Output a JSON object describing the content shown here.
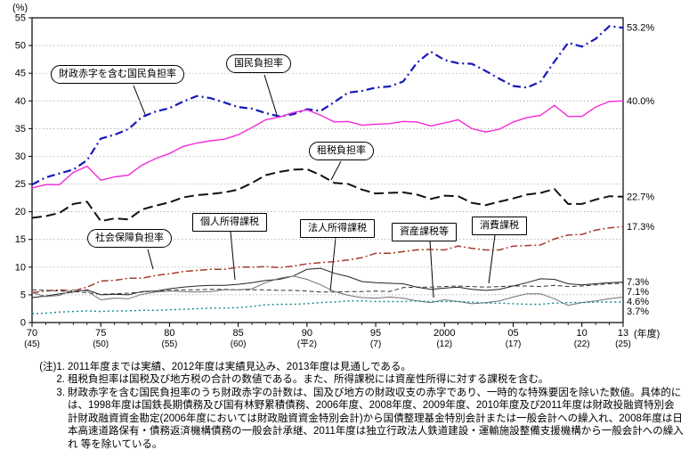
{
  "chart_data": {
    "type": "line",
    "y_axis_unit": "(%)",
    "x_axis_unit": "(年度)",
    "ylim": [
      0,
      55
    ],
    "grid": "horizontal-dotted",
    "y_ticks": [
      0,
      5,
      10,
      15,
      20,
      25,
      30,
      35,
      40,
      45,
      50,
      55
    ],
    "x_range": [
      1970,
      2013
    ],
    "x_ticks": [
      {
        "year": 1970,
        "label": "70",
        "sub": "(45)"
      },
      {
        "year": 1975,
        "label": "75",
        "sub": "(50)"
      },
      {
        "year": 1980,
        "label": "80",
        "sub": "(55)"
      },
      {
        "year": 1985,
        "label": "85",
        "sub": "(60)"
      },
      {
        "year": 1990,
        "label": "90",
        "sub": "(平2)"
      },
      {
        "year": 1995,
        "label": "95",
        "sub": "(7)"
      },
      {
        "year": 2000,
        "label": "2000",
        "sub": "(12)"
      },
      {
        "year": 2005,
        "label": "05",
        "sub": "(17)"
      },
      {
        "year": 2010,
        "label": "10",
        "sub": "(22)"
      },
      {
        "year": 2013,
        "label": "13",
        "sub": "(25)"
      }
    ],
    "years": [
      1970,
      1971,
      1972,
      1973,
      1974,
      1975,
      1976,
      1977,
      1978,
      1979,
      1980,
      1981,
      1982,
      1983,
      1984,
      1985,
      1986,
      1987,
      1988,
      1989,
      1990,
      1991,
      1992,
      1993,
      1994,
      1995,
      1996,
      1997,
      1998,
      1999,
      2000,
      2001,
      2002,
      2003,
      2004,
      2005,
      2006,
      2007,
      2008,
      2009,
      2010,
      2011,
      2012,
      2013
    ],
    "series": [
      {
        "name": "deficit-included-national-burden",
        "label": "財政赤字を含む国民負担率",
        "color": "#1818b8",
        "dash": "9 4 2 4",
        "width": 2.2,
        "end_label": "53.2%",
        "values": [
          24.9,
          26.2,
          26.9,
          27.6,
          29.3,
          33.2,
          33.9,
          34.9,
          37.1,
          38.1,
          38.7,
          39.9,
          40.9,
          40.5,
          39.7,
          38.9,
          38.6,
          37.8,
          37.2,
          37.6,
          38.5,
          38.2,
          39.8,
          41.5,
          41.8,
          42.4,
          42.6,
          43.5,
          46.9,
          48.9,
          47.4,
          46.8,
          46.7,
          45.4,
          44.0,
          42.7,
          42.4,
          43.5,
          47.1,
          50.5,
          49.8,
          51.2,
          53.5,
          53.2
        ]
      },
      {
        "name": "national-burden",
        "label": "国民負担率",
        "color": "#f42ad6",
        "dash": "",
        "width": 1.4,
        "end_label": "40.0%",
        "values": [
          24.3,
          24.9,
          24.9,
          27.1,
          28.2,
          25.7,
          26.3,
          26.6,
          28.4,
          29.6,
          30.5,
          31.8,
          32.4,
          32.8,
          33.1,
          33.9,
          35.2,
          36.6,
          37.1,
          37.9,
          38.4,
          37.4,
          36.2,
          36.3,
          35.6,
          35.8,
          35.9,
          36.3,
          36.2,
          35.5,
          36.0,
          36.6,
          35.0,
          34.4,
          34.9,
          36.2,
          37.0,
          37.4,
          39.2,
          37.2,
          37.2,
          38.9,
          39.9,
          40.0
        ]
      },
      {
        "name": "tax-burden",
        "label": "租税負担率",
        "color": "#111111",
        "dash": "11 5",
        "width": 2,
        "end_label": "22.7%",
        "values": [
          18.9,
          19.2,
          19.8,
          21.4,
          21.8,
          18.3,
          18.8,
          18.6,
          20.4,
          21.1,
          21.7,
          22.6,
          23.0,
          23.2,
          23.5,
          24.0,
          25.2,
          26.6,
          27.2,
          27.6,
          27.7,
          26.6,
          25.2,
          25.0,
          24.0,
          23.3,
          23.4,
          23.5,
          23.1,
          22.3,
          22.9,
          22.8,
          21.6,
          21.2,
          21.8,
          22.4,
          23.1,
          23.4,
          24.1,
          21.4,
          21.4,
          22.2,
          22.8,
          22.7
        ]
      },
      {
        "name": "social-security-burden",
        "label": "社会保障負担率",
        "color": "#a43c2a",
        "dash": "8 3 2 3",
        "width": 1.5,
        "end_label": "17.3%",
        "values": [
          5.4,
          5.7,
          5.9,
          5.7,
          6.4,
          7.5,
          7.6,
          8.0,
          8.0,
          8.5,
          8.8,
          9.2,
          9.4,
          9.6,
          9.6,
          10.0,
          10.0,
          10.1,
          9.9,
          10.2,
          10.6,
          10.8,
          11.0,
          11.3,
          11.7,
          12.5,
          12.5,
          12.8,
          13.1,
          13.2,
          13.1,
          13.8,
          13.4,
          13.1,
          13.1,
          13.8,
          13.9,
          14.0,
          15.1,
          15.8,
          15.9,
          16.7,
          17.1,
          17.3
        ]
      },
      {
        "name": "individual-income-tax",
        "label": "個人所得課税",
        "color": "#222222",
        "dash": "",
        "width": 1,
        "end_label": "7.3%",
        "values": [
          4.5,
          4.8,
          5.2,
          5.5,
          5.9,
          5.0,
          5.1,
          5.0,
          5.6,
          5.7,
          6.1,
          6.4,
          6.6,
          6.7,
          6.7,
          6.9,
          7.2,
          7.6,
          7.8,
          8.4,
          9.6,
          9.8,
          8.9,
          8.3,
          7.4,
          7.2,
          7.1,
          7.0,
          6.4,
          6.0,
          6.2,
          6.4,
          6.0,
          5.8,
          6.0,
          6.6,
          7.2,
          7.9,
          7.8,
          7.0,
          6.8,
          7.0,
          7.2,
          7.3
        ]
      },
      {
        "name": "consumption-tax",
        "label": "消費課税",
        "color": "#333333",
        "dash": "5 3",
        "width": 1,
        "end_label": "7.1%",
        "values": [
          5.9,
          5.8,
          5.7,
          5.6,
          5.4,
          5.1,
          5.2,
          5.3,
          5.5,
          5.7,
          5.8,
          5.9,
          5.9,
          6.0,
          6.0,
          5.9,
          5.9,
          5.9,
          5.8,
          5.8,
          5.7,
          5.5,
          5.5,
          5.6,
          5.6,
          5.7,
          5.6,
          6.3,
          6.4,
          6.4,
          6.5,
          6.6,
          6.5,
          6.4,
          6.5,
          6.6,
          6.6,
          6.5,
          6.7,
          6.5,
          6.6,
          6.8,
          7.0,
          7.1
        ]
      },
      {
        "name": "corporate-income-tax",
        "label": "法人所得課税",
        "color": "#707070",
        "dash": "",
        "width": 1,
        "end_label": "4.6%",
        "values": [
          5.4,
          4.7,
          4.9,
          5.9,
          5.7,
          4.1,
          4.4,
          4.3,
          5.1,
          5.5,
          5.7,
          5.6,
          5.5,
          5.6,
          5.9,
          5.9,
          6.1,
          7.2,
          8.0,
          8.4,
          7.8,
          6.8,
          5.6,
          4.9,
          4.5,
          4.4,
          4.6,
          4.4,
          3.9,
          3.6,
          4.1,
          3.8,
          3.4,
          3.6,
          3.9,
          4.6,
          5.2,
          5.2,
          4.3,
          3.1,
          3.6,
          3.9,
          4.3,
          4.6
        ]
      },
      {
        "name": "asset-tax",
        "label": "資産課税等",
        "color": "#0a8a8a",
        "dash": "2 3",
        "width": 1.4,
        "end_label": "3.7%",
        "values": [
          1.6,
          1.7,
          1.9,
          2.0,
          2.1,
          2.0,
          2.1,
          2.1,
          2.2,
          2.2,
          2.3,
          2.4,
          2.5,
          2.6,
          2.6,
          2.7,
          2.9,
          3.2,
          3.3,
          3.3,
          3.4,
          3.6,
          3.7,
          3.9,
          3.9,
          3.8,
          3.8,
          3.8,
          3.9,
          3.8,
          3.8,
          3.8,
          3.7,
          3.5,
          3.5,
          3.4,
          3.3,
          3.3,
          3.5,
          3.6,
          3.6,
          3.7,
          3.7,
          3.7
        ]
      }
    ]
  },
  "notes": [
    {
      "marker": "(注)1.",
      "text": "2011年度までは実績、2012年度は実績見込み、2013年度は見通しである。"
    },
    {
      "marker": "2.",
      "text": "租税負担率は国税及び地方税の合計の数値である。また、所得課税には資産性所得に対する課税を含む。"
    },
    {
      "marker": "3.",
      "text": "財政赤字を含む国民負担率のうち財政赤字の計数は、国及び地方の財政収支の赤字であり、一時的な特殊要因を除いた数値。具体的には、1998年度は国鉄長期債務及び国有林野累積債務、2006年度、2008年度、2009年度、2010年度及び2011年度は財政投融資特別会計財政融資資金勘定(2006年度においては財政融資資金特別会計)から国債整理基金特別会計または一般会計への繰入れ、2008年度は日本高速道路保有・債務返済機構債務の一般会計承継、2011年度は独立行政法人鉄道建設・運輸施設整備支援機構から一般会計への繰入れ 等を除いている。"
    }
  ]
}
